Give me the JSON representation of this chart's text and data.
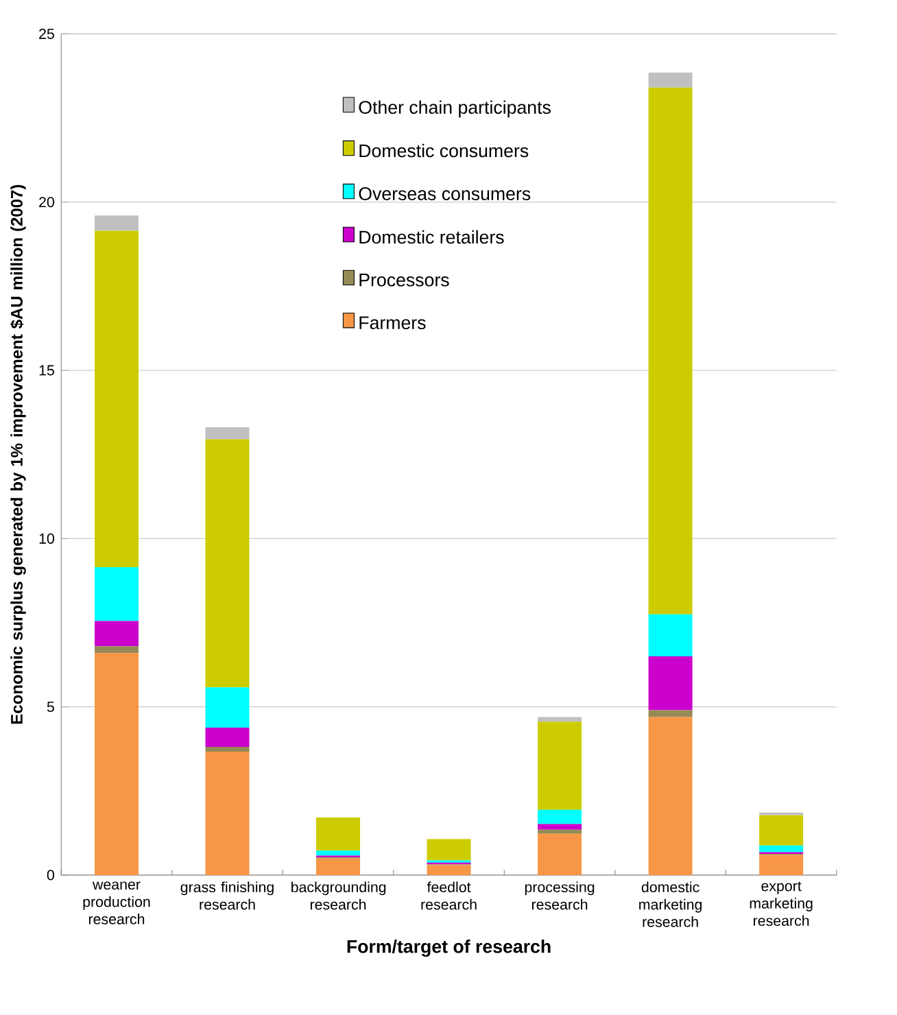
{
  "chart_data": {
    "type": "bar",
    "stacked": true,
    "xlabel": "Form/target of research",
    "ylabel": "Economic surplus generated by 1% improvement $AU million (2007)",
    "categories": [
      "weaner production research",
      "grass finishing research",
      "backgrounding research",
      "feedlot research",
      "processing research",
      "domestic marketing research",
      "export marketing research"
    ],
    "series": [
      {
        "name": "Farmers",
        "color": "#f79646",
        "values": [
          6.6,
          3.67,
          0.5,
          0.3,
          1.23,
          4.7,
          0.6
        ]
      },
      {
        "name": "Processors",
        "color": "#948a54",
        "values": [
          0.2,
          0.14,
          0.03,
          0.02,
          0.12,
          0.2,
          0.03
        ]
      },
      {
        "name": "Domestic retailers",
        "color": "#cc00cc",
        "values": [
          0.75,
          0.57,
          0.05,
          0.05,
          0.17,
          1.6,
          0.05
        ]
      },
      {
        "name": "Overseas consumers",
        "color": "#00ffff",
        "values": [
          1.6,
          1.2,
          0.15,
          0.07,
          0.42,
          1.25,
          0.2
        ]
      },
      {
        "name": "Domestic consumers",
        "color": "#cccc00",
        "values": [
          10.0,
          7.37,
          0.98,
          0.63,
          2.62,
          15.65,
          0.9
        ]
      },
      {
        "name": "Other chain participants",
        "color": "#c0c0c0",
        "values": [
          0.45,
          0.36,
          null,
          null,
          0.14,
          0.45,
          0.08
        ]
      }
    ],
    "ylim": [
      0,
      25
    ],
    "yticks": [
      0,
      5,
      10,
      15,
      20,
      25
    ],
    "grid": "y",
    "legend": "top"
  }
}
